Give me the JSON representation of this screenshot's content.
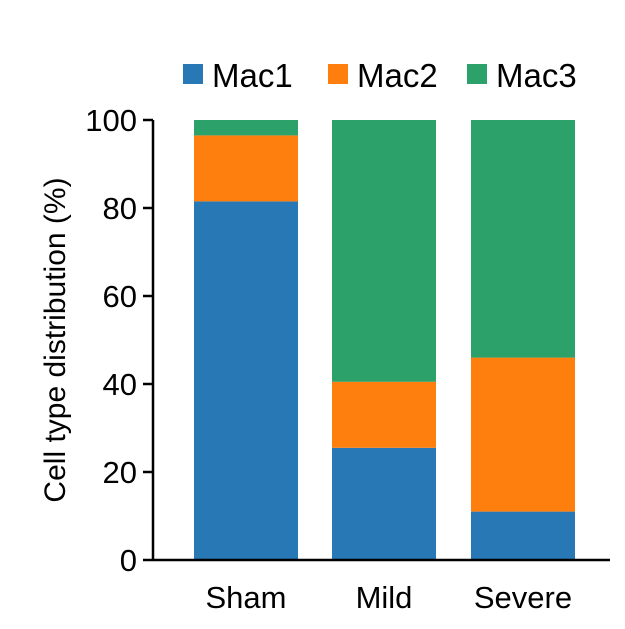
{
  "chart_data": {
    "type": "bar",
    "stacked": true,
    "categories": [
      "Sham",
      "Mild",
      "Severe"
    ],
    "series": [
      {
        "name": "Mac1",
        "values": [
          81.5,
          25.5,
          11
        ],
        "color": "#2878b5"
      },
      {
        "name": "Mac2",
        "values": [
          15,
          15,
          35
        ],
        "color": "#ff7f0e"
      },
      {
        "name": "Mac3",
        "values": [
          4,
          60,
          54.5
        ],
        "color": "#2ca16a"
      }
    ],
    "title": "",
    "xlabel": "",
    "ylabel": "Cell type distribution (%)",
    "ylim": [
      0,
      100
    ],
    "yticks": [
      "0",
      "20",
      "40",
      "60",
      "80",
      "100"
    ],
    "grid": false,
    "legend_position": "top"
  }
}
